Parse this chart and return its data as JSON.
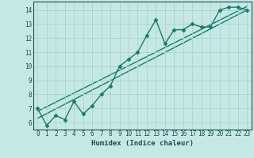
{
  "title": "",
  "xlabel": "Humidex (Indice chaleur)",
  "ylabel": "",
  "bg_color": "#c6e8e4",
  "line_color": "#1a7a6a",
  "xlim": [
    -0.5,
    23.5
  ],
  "ylim": [
    5.5,
    14.6
  ],
  "xticks": [
    0,
    1,
    2,
    3,
    4,
    5,
    6,
    7,
    8,
    9,
    10,
    11,
    12,
    13,
    14,
    15,
    16,
    17,
    18,
    19,
    20,
    21,
    22,
    23
  ],
  "yticks": [
    6,
    7,
    8,
    9,
    10,
    11,
    12,
    13,
    14
  ],
  "series1_x": [
    0,
    1,
    2,
    3,
    4,
    5,
    6,
    7,
    8,
    9,
    10,
    11,
    12,
    13,
    14,
    15,
    16,
    17,
    18,
    19,
    20,
    21,
    22,
    23
  ],
  "series1_y": [
    7.0,
    5.8,
    6.5,
    6.2,
    7.5,
    6.6,
    7.2,
    8.0,
    8.6,
    10.0,
    10.5,
    11.0,
    12.2,
    13.3,
    11.6,
    12.6,
    12.6,
    13.0,
    12.8,
    12.8,
    14.0,
    14.2,
    14.2,
    14.0
  ],
  "series2_x": [
    0,
    23
  ],
  "series2_y": [
    6.3,
    14.0
  ],
  "series3_x": [
    0,
    23
  ],
  "series3_y": [
    6.8,
    14.25
  ],
  "grid_color": "#a8d4d0",
  "marker": "D",
  "markersize": 2.5,
  "linewidth": 1.0
}
